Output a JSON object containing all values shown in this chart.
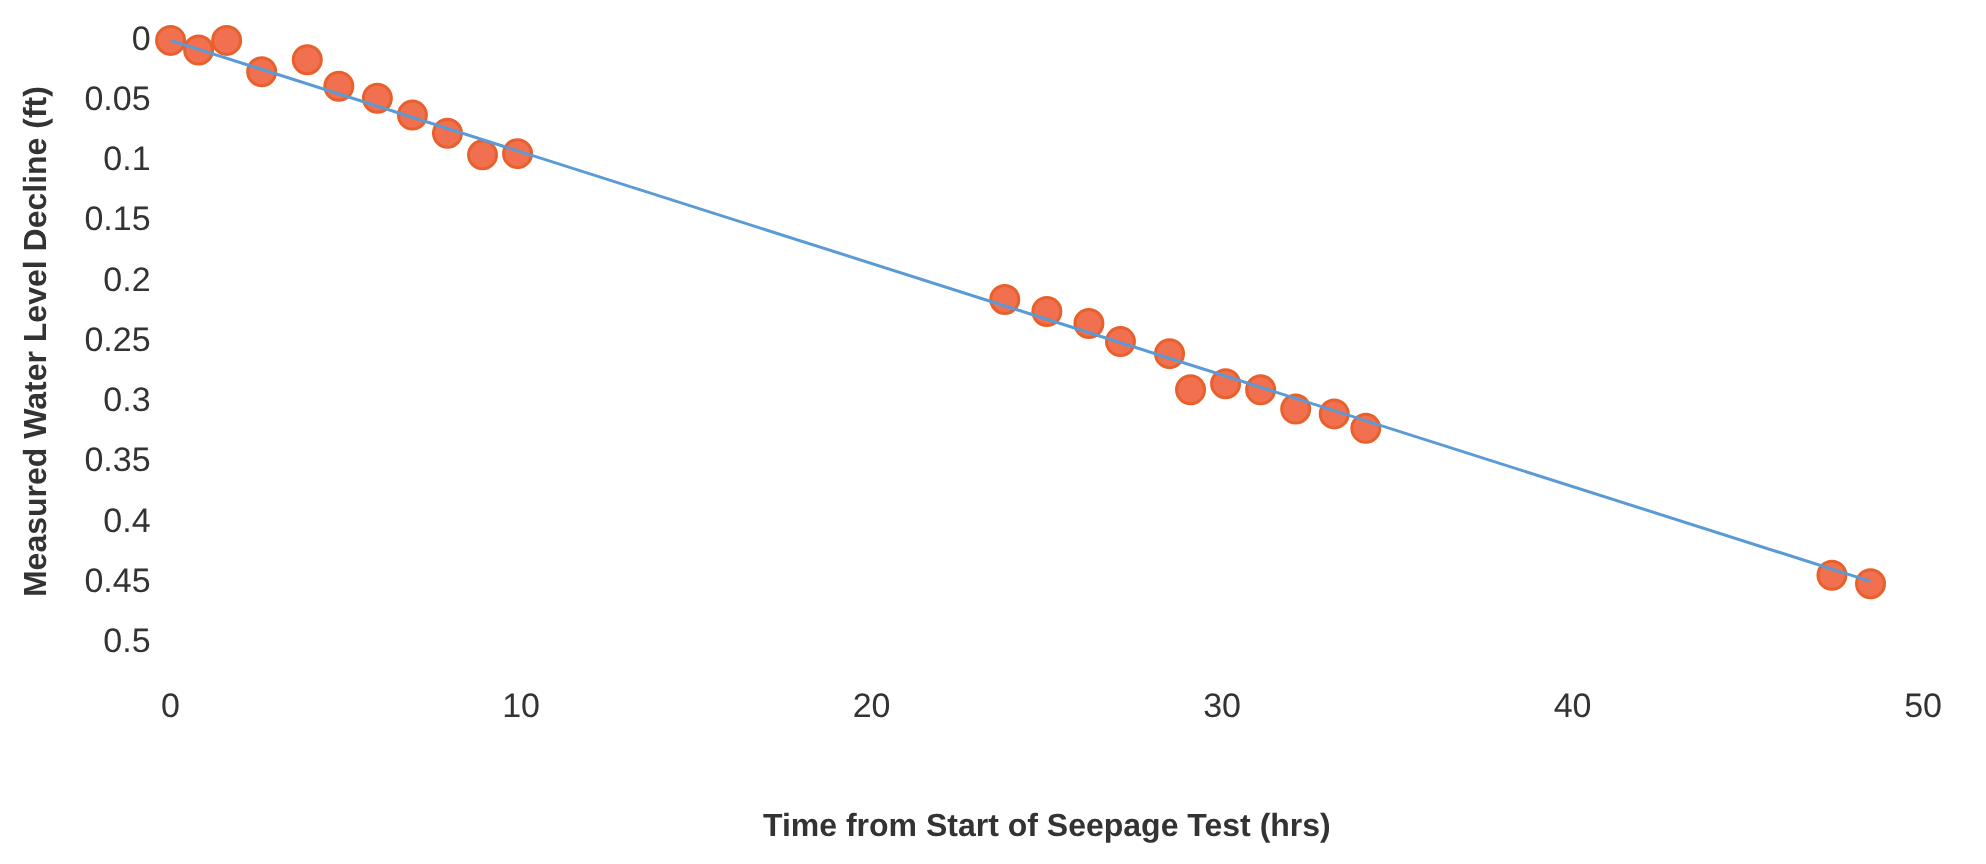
{
  "chart_data": {
    "type": "scatter",
    "xlabel": "Time from Start of Seepage Test (hrs)",
    "ylabel": "Measured Water Level Decline (ft)",
    "xlim": [
      0,
      50
    ],
    "xticks": [
      0,
      10,
      20,
      30,
      40,
      50
    ],
    "ylim": [
      0.5,
      0
    ],
    "yticks": [
      0,
      0.05,
      0.1,
      0.15,
      0.2,
      0.25,
      0.3,
      0.35,
      0.4,
      0.45,
      0.5
    ],
    "grid": false,
    "legend": false,
    "marker": "circle",
    "series": [
      {
        "color": "#f07050",
        "x": [
          0,
          0.8,
          1.6,
          2.6,
          3.9,
          4.8,
          5.9,
          6.9,
          7.9,
          8.9,
          9.9,
          23.8,
          25,
          26.2,
          27.1,
          28.5,
          29.1,
          30.1,
          31.1,
          32.1,
          33.2,
          34.1,
          47.4,
          48.5
        ],
        "values": [
          0,
          0.008,
          0,
          0.026,
          0.016,
          0.038,
          0.048,
          0.062,
          0.077,
          0.095,
          0.094,
          0.215,
          0.225,
          0.235,
          0.25,
          0.26,
          0.29,
          0.285,
          0.29,
          0.306,
          0.31,
          0.322,
          0.444,
          0.451
        ]
      },
      {
        "type": "line",
        "marker": "none",
        "color": "#5b9bd5",
        "x": [
          0,
          48.5
        ],
        "values": [
          0,
          0.449
        ]
      }
    ]
  }
}
